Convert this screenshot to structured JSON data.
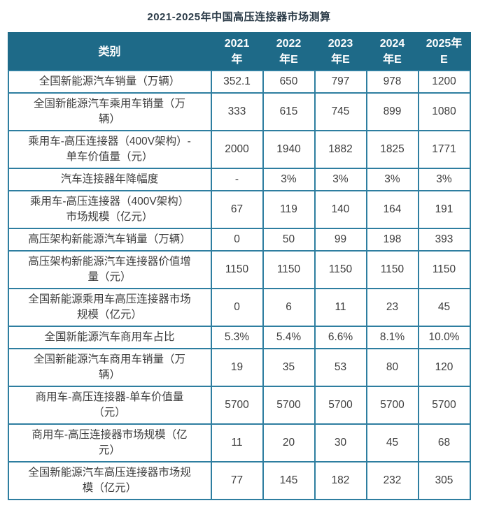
{
  "title": "2021-2025年中国高压连接器市场测算",
  "colors": {
    "header_bg": "#1E6A88",
    "header_text": "#FFFFFF",
    "border": "#2E7EA0",
    "body_text": "#3D3D3D",
    "title_text": "#2B3B48",
    "background": "#FFFFFF"
  },
  "table": {
    "header_display": [
      "类别",
      "2021\n年",
      "2022\n年E",
      "2023\n年E",
      "2024\n年E",
      "2025年\nE"
    ],
    "labels_display": [
      "全国新能源汽车销量（万辆）",
      "全国新能源汽车乘用车销量（万\n辆）",
      "乘用车-高压连接器（400V架构）-\n单车价值量（元）",
      "汽车连接器年降幅度",
      "乘用车-高压连接器（400V架构）\n市场规模（亿元）",
      "高压架构新能源汽车销量（万辆）",
      "高压架构新能源汽车连接器价值增\n量（元）",
      "全国新能源乘用车高压连接器市场\n规模（亿元）",
      "全国新能源汽车商用车占比",
      "全国新能源汽车商用车销量（万\n辆）",
      "商用车-高压连接器-单车价值量\n（元）",
      "商用车-高压连接器市场规模（亿\n元）",
      "全国新能源汽车高压连接器市场规\n模（亿元）"
    ]
  },
  "chart_data": {
    "type": "table",
    "title": "2021-2025年中国高压连接器市场测算",
    "columns": [
      "类别",
      "2021年",
      "2022年E",
      "2023年E",
      "2024年E",
      "2025年E"
    ],
    "rows": [
      [
        "全国新能源汽车销量（万辆）",
        "352.1",
        "650",
        "797",
        "978",
        "1200"
      ],
      [
        "全国新能源汽车乘用车销量（万辆）",
        "333",
        "615",
        "745",
        "899",
        "1080"
      ],
      [
        "乘用车-高压连接器（400V架构）-单车价值量（元）",
        "2000",
        "1940",
        "1882",
        "1825",
        "1771"
      ],
      [
        "汽车连接器年降幅度",
        "-",
        "3%",
        "3%",
        "3%",
        "3%"
      ],
      [
        "乘用车-高压连接器（400V架构）市场规模（亿元）",
        "67",
        "119",
        "140",
        "164",
        "191"
      ],
      [
        "高压架构新能源汽车销量（万辆）",
        "0",
        "50",
        "99",
        "198",
        "393"
      ],
      [
        "高压架构新能源汽车连接器价值增量（元）",
        "1150",
        "1150",
        "1150",
        "1150",
        "1150"
      ],
      [
        "全国新能源乘用车高压连接器市场规模（亿元）",
        "0",
        "6",
        "11",
        "23",
        "45"
      ],
      [
        "全国新能源汽车商用车占比",
        "5.3%",
        "5.4%",
        "6.6%",
        "8.1%",
        "10.0%"
      ],
      [
        "全国新能源汽车商用车销量（万辆）",
        "19",
        "35",
        "53",
        "80",
        "120"
      ],
      [
        "商用车-高压连接器-单车价值量（元）",
        "5700",
        "5700",
        "5700",
        "5700",
        "5700"
      ],
      [
        "商用车-高压连接器市场规模（亿元）",
        "11",
        "20",
        "30",
        "45",
        "68"
      ],
      [
        "全国新能源汽车高压连接器市场规模（亿元）",
        "77",
        "145",
        "182",
        "232",
        "305"
      ]
    ]
  }
}
